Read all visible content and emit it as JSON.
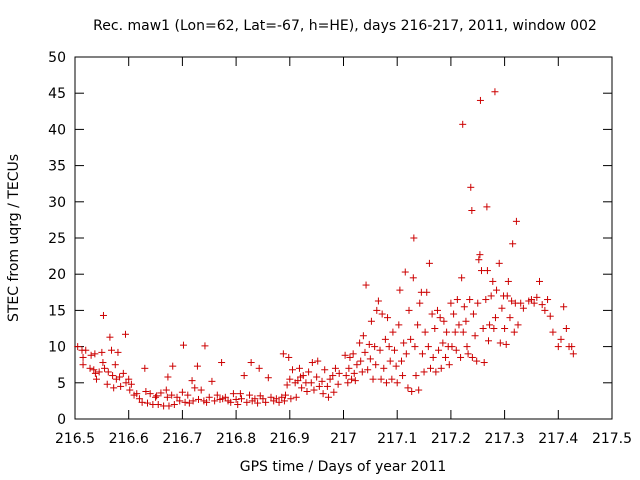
{
  "chart_data": {
    "type": "scatter",
    "title": "Rec. maw1 (Lon=62, Lat=-67, h=HE), days 216-217, 2011, window 002",
    "xlabel": "GPS time / Days of year 2011",
    "ylabel": "STEC from uqrg / TECUs",
    "xlim": [
      216.5,
      217.5
    ],
    "ylim": [
      0,
      50
    ],
    "xticks": [
      "216.5",
      "216.6",
      "216.7",
      "216.8",
      "216.9",
      "217",
      "217.1",
      "217.2",
      "217.3",
      "217.4",
      "217.5"
    ],
    "yticks": [
      "0",
      "5",
      "10",
      "15",
      "20",
      "25",
      "30",
      "35",
      "40",
      "45",
      "50"
    ],
    "grid": false,
    "marker": "+",
    "color": "#cc0000",
    "points": [
      [
        216.505,
        10.0
      ],
      [
        216.513,
        9.5
      ],
      [
        216.515,
        8.5
      ],
      [
        216.515,
        7.5
      ],
      [
        216.52,
        9.5
      ],
      [
        216.528,
        7.0
      ],
      [
        216.53,
        8.8
      ],
      [
        216.535,
        6.8
      ],
      [
        216.537,
        9.0
      ],
      [
        216.538,
        6.3
      ],
      [
        216.54,
        5.5
      ],
      [
        216.545,
        6.5
      ],
      [
        216.55,
        9.2
      ],
      [
        216.552,
        7.8
      ],
      [
        216.553,
        14.3
      ],
      [
        216.555,
        7.0
      ],
      [
        216.56,
        4.8
      ],
      [
        216.562,
        6.5
      ],
      [
        216.565,
        11.3
      ],
      [
        216.568,
        9.5
      ],
      [
        216.57,
        6.0
      ],
      [
        216.572,
        4.3
      ],
      [
        216.575,
        7.5
      ],
      [
        216.577,
        5.5
      ],
      [
        216.58,
        9.2
      ],
      [
        216.583,
        5.8
      ],
      [
        216.585,
        4.5
      ],
      [
        216.59,
        6.3
      ],
      [
        216.594,
        11.7
      ],
      [
        216.595,
        5.0
      ],
      [
        216.6,
        5.5
      ],
      [
        216.602,
        4.0
      ],
      [
        216.605,
        4.8
      ],
      [
        216.61,
        3.3
      ],
      [
        216.615,
        3.5
      ],
      [
        216.62,
        2.8
      ],
      [
        216.625,
        2.3
      ],
      [
        216.63,
        7.0
      ],
      [
        216.632,
        3.8
      ],
      [
        216.635,
        2.2
      ],
      [
        216.64,
        3.5
      ],
      [
        216.645,
        2.0
      ],
      [
        216.65,
        3.0
      ],
      [
        216.652,
        3.2
      ],
      [
        216.655,
        2.0
      ],
      [
        216.66,
        3.6
      ],
      [
        216.665,
        1.8
      ],
      [
        216.67,
        4.0
      ],
      [
        216.672,
        3.0
      ],
      [
        216.673,
        5.8
      ],
      [
        216.675,
        1.8
      ],
      [
        216.68,
        3.3
      ],
      [
        216.682,
        7.3
      ],
      [
        216.685,
        2.0
      ],
      [
        216.69,
        3.0
      ],
      [
        216.695,
        2.5
      ],
      [
        216.7,
        3.7
      ],
      [
        216.702,
        10.2
      ],
      [
        216.705,
        2.3
      ],
      [
        216.71,
        3.3
      ],
      [
        216.713,
        2.2
      ],
      [
        216.718,
        5.3
      ],
      [
        216.72,
        2.5
      ],
      [
        216.723,
        4.3
      ],
      [
        216.728,
        7.3
      ],
      [
        216.73,
        2.7
      ],
      [
        216.735,
        4.0
      ],
      [
        216.74,
        2.5
      ],
      [
        216.742,
        10.1
      ],
      [
        216.745,
        2.3
      ],
      [
        216.75,
        3.0
      ],
      [
        216.755,
        5.2
      ],
      [
        216.76,
        2.5
      ],
      [
        216.765,
        3.3
      ],
      [
        216.77,
        2.7
      ],
      [
        216.773,
        7.8
      ],
      [
        216.775,
        2.8
      ],
      [
        216.78,
        3.0
      ],
      [
        216.785,
        2.5
      ],
      [
        216.79,
        2.3
      ],
      [
        216.795,
        3.5
      ],
      [
        216.8,
        2.7
      ],
      [
        216.803,
        2.0
      ],
      [
        216.808,
        3.5
      ],
      [
        216.81,
        2.8
      ],
      [
        216.815,
        6.0
      ],
      [
        216.82,
        2.3
      ],
      [
        216.825,
        3.3
      ],
      [
        216.828,
        7.8
      ],
      [
        216.83,
        2.5
      ],
      [
        216.835,
        2.8
      ],
      [
        216.84,
        2.2
      ],
      [
        216.843,
        7.0
      ],
      [
        216.845,
        3.2
      ],
      [
        216.85,
        2.8
      ],
      [
        216.855,
        2.3
      ],
      [
        216.86,
        5.7
      ],
      [
        216.865,
        3.0
      ],
      [
        216.87,
        2.5
      ],
      [
        216.875,
        2.8
      ],
      [
        216.88,
        2.3
      ],
      [
        216.885,
        3.0
      ],
      [
        216.888,
        9.0
      ],
      [
        216.89,
        2.5
      ],
      [
        216.892,
        3.3
      ],
      [
        216.895,
        4.7
      ],
      [
        216.898,
        8.5
      ],
      [
        216.9,
        5.5
      ],
      [
        216.902,
        2.8
      ],
      [
        216.905,
        6.8
      ],
      [
        216.91,
        5.0
      ],
      [
        216.912,
        3.0
      ],
      [
        216.915,
        5.3
      ],
      [
        216.918,
        7.0
      ],
      [
        216.92,
        5.8
      ],
      [
        216.922,
        4.3
      ],
      [
        216.925,
        6.0
      ],
      [
        216.93,
        5.0
      ],
      [
        216.932,
        3.8
      ],
      [
        216.935,
        6.5
      ],
      [
        216.94,
        5.0
      ],
      [
        216.942,
        7.8
      ],
      [
        216.945,
        4.0
      ],
      [
        216.95,
        5.8
      ],
      [
        216.952,
        8.0
      ],
      [
        216.955,
        4.5
      ],
      [
        216.96,
        5.2
      ],
      [
        216.962,
        3.5
      ],
      [
        216.965,
        6.8
      ],
      [
        216.97,
        4.5
      ],
      [
        216.972,
        3.0
      ],
      [
        216.975,
        5.5
      ],
      [
        216.98,
        6.0
      ],
      [
        216.982,
        3.7
      ],
      [
        216.985,
        7.0
      ],
      [
        216.99,
        4.8
      ],
      [
        216.992,
        6.3
      ],
      [
        217.003,
        8.8
      ],
      [
        217.005,
        6.0
      ],
      [
        217.008,
        5.0
      ],
      [
        217.01,
        7.0
      ],
      [
        217.012,
        8.5
      ],
      [
        217.015,
        5.5
      ],
      [
        217.018,
        9.0
      ],
      [
        217.02,
        6.3
      ],
      [
        217.022,
        5.3
      ],
      [
        217.025,
        7.5
      ],
      [
        217.03,
        10.5
      ],
      [
        217.032,
        8.0
      ],
      [
        217.035,
        6.5
      ],
      [
        217.037,
        11.5
      ],
      [
        217.04,
        9.2
      ],
      [
        217.042,
        18.5
      ],
      [
        217.045,
        6.8
      ],
      [
        217.048,
        10.3
      ],
      [
        217.05,
        8.3
      ],
      [
        217.052,
        13.5
      ],
      [
        217.055,
        5.5
      ],
      [
        217.058,
        10.0
      ],
      [
        217.06,
        7.5
      ],
      [
        217.062,
        15.0
      ],
      [
        217.065,
        16.3
      ],
      [
        217.068,
        9.5
      ],
      [
        217.07,
        5.5
      ],
      [
        217.072,
        14.5
      ],
      [
        217.075,
        7.0
      ],
      [
        217.078,
        11.0
      ],
      [
        217.08,
        5.0
      ],
      [
        217.082,
        14.0
      ],
      [
        217.085,
        10.0
      ],
      [
        217.087,
        8.0
      ],
      [
        217.09,
        5.5
      ],
      [
        217.092,
        12.0
      ],
      [
        217.095,
        9.5
      ],
      [
        217.098,
        7.3
      ],
      [
        217.1,
        5.0
      ],
      [
        217.103,
        13.0
      ],
      [
        217.105,
        17.8
      ],
      [
        217.108,
        8.0
      ],
      [
        217.11,
        6.0
      ],
      [
        217.112,
        10.5
      ],
      [
        217.115,
        20.3
      ],
      [
        217.117,
        9.0
      ],
      [
        217.12,
        4.3
      ],
      [
        217.122,
        15.0
      ],
      [
        217.125,
        11.0
      ],
      [
        217.127,
        3.8
      ],
      [
        217.13,
        19.5
      ],
      [
        217.131,
        25.0
      ],
      [
        217.133,
        10.0
      ],
      [
        217.135,
        6.0
      ],
      [
        217.138,
        13.0
      ],
      [
        217.14,
        4.0
      ],
      [
        217.142,
        16.0
      ],
      [
        217.145,
        17.5
      ],
      [
        217.147,
        9.0
      ],
      [
        217.15,
        6.5
      ],
      [
        217.152,
        12.0
      ],
      [
        217.155,
        17.5
      ],
      [
        217.158,
        10.0
      ],
      [
        217.16,
        21.5
      ],
      [
        217.162,
        7.0
      ],
      [
        217.165,
        14.5
      ],
      [
        217.167,
        8.5
      ],
      [
        217.17,
        12.5
      ],
      [
        217.172,
        6.5
      ],
      [
        217.175,
        15.0
      ],
      [
        217.177,
        9.5
      ],
      [
        217.18,
        14.0
      ],
      [
        217.182,
        7.0
      ],
      [
        217.185,
        10.5
      ],
      [
        217.187,
        13.5
      ],
      [
        217.19,
        8.5
      ],
      [
        217.192,
        12.0
      ],
      [
        217.195,
        10.0
      ],
      [
        217.197,
        7.5
      ],
      [
        217.2,
        16.0
      ],
      [
        217.202,
        10.0
      ],
      [
        217.205,
        14.5
      ],
      [
        217.208,
        12.0
      ],
      [
        217.21,
        9.5
      ],
      [
        217.212,
        16.5
      ],
      [
        217.215,
        13.0
      ],
      [
        217.218,
        8.5
      ],
      [
        217.22,
        19.5
      ],
      [
        217.222,
        40.7
      ],
      [
        217.223,
        12.0
      ],
      [
        217.225,
        15.5
      ],
      [
        217.228,
        13.5
      ],
      [
        217.23,
        10.0
      ],
      [
        217.232,
        9.0
      ],
      [
        217.235,
        16.5
      ],
      [
        217.237,
        32.0
      ],
      [
        217.239,
        28.8
      ],
      [
        217.24,
        8.5
      ],
      [
        217.242,
        14.5
      ],
      [
        217.245,
        11.5
      ],
      [
        217.248,
        8.0
      ],
      [
        217.25,
        16.0
      ],
      [
        217.252,
        22.0
      ],
      [
        217.254,
        22.7
      ],
      [
        217.255,
        44.0
      ],
      [
        217.257,
        20.5
      ],
      [
        217.26,
        12.5
      ],
      [
        217.262,
        7.8
      ],
      [
        217.265,
        16.5
      ],
      [
        217.267,
        29.3
      ],
      [
        217.268,
        20.5
      ],
      [
        217.27,
        10.8
      ],
      [
        217.272,
        13.0
      ],
      [
        217.275,
        17.0
      ],
      [
        217.278,
        19.0
      ],
      [
        217.28,
        12.5
      ],
      [
        217.282,
        45.2
      ],
      [
        217.283,
        14.0
      ],
      [
        217.285,
        17.8
      ],
      [
        217.29,
        21.5
      ],
      [
        217.292,
        10.5
      ],
      [
        217.295,
        15.3
      ],
      [
        217.298,
        17.0
      ],
      [
        217.3,
        12.5
      ],
      [
        217.303,
        10.3
      ],
      [
        217.305,
        17.0
      ],
      [
        217.307,
        19.0
      ],
      [
        217.31,
        14.0
      ],
      [
        217.313,
        16.3
      ],
      [
        217.315,
        24.2
      ],
      [
        217.318,
        12.0
      ],
      [
        217.32,
        16.0
      ],
      [
        217.322,
        27.3
      ],
      [
        217.325,
        13.0
      ],
      [
        217.33,
        16.0
      ],
      [
        217.335,
        15.3
      ],
      [
        217.345,
        16.3
      ],
      [
        217.35,
        16.5
      ],
      [
        217.355,
        16.0
      ],
      [
        217.36,
        16.8
      ],
      [
        217.365,
        19.0
      ],
      [
        217.37,
        15.8
      ],
      [
        217.375,
        15.0
      ],
      [
        217.38,
        16.5
      ],
      [
        217.385,
        14.2
      ],
      [
        217.39,
        12.0
      ],
      [
        217.4,
        10.0
      ],
      [
        217.405,
        11.0
      ],
      [
        217.41,
        15.5
      ],
      [
        217.415,
        12.5
      ],
      [
        217.42,
        10.0
      ],
      [
        217.425,
        10.0
      ],
      [
        217.428,
        9.0
      ]
    ]
  }
}
